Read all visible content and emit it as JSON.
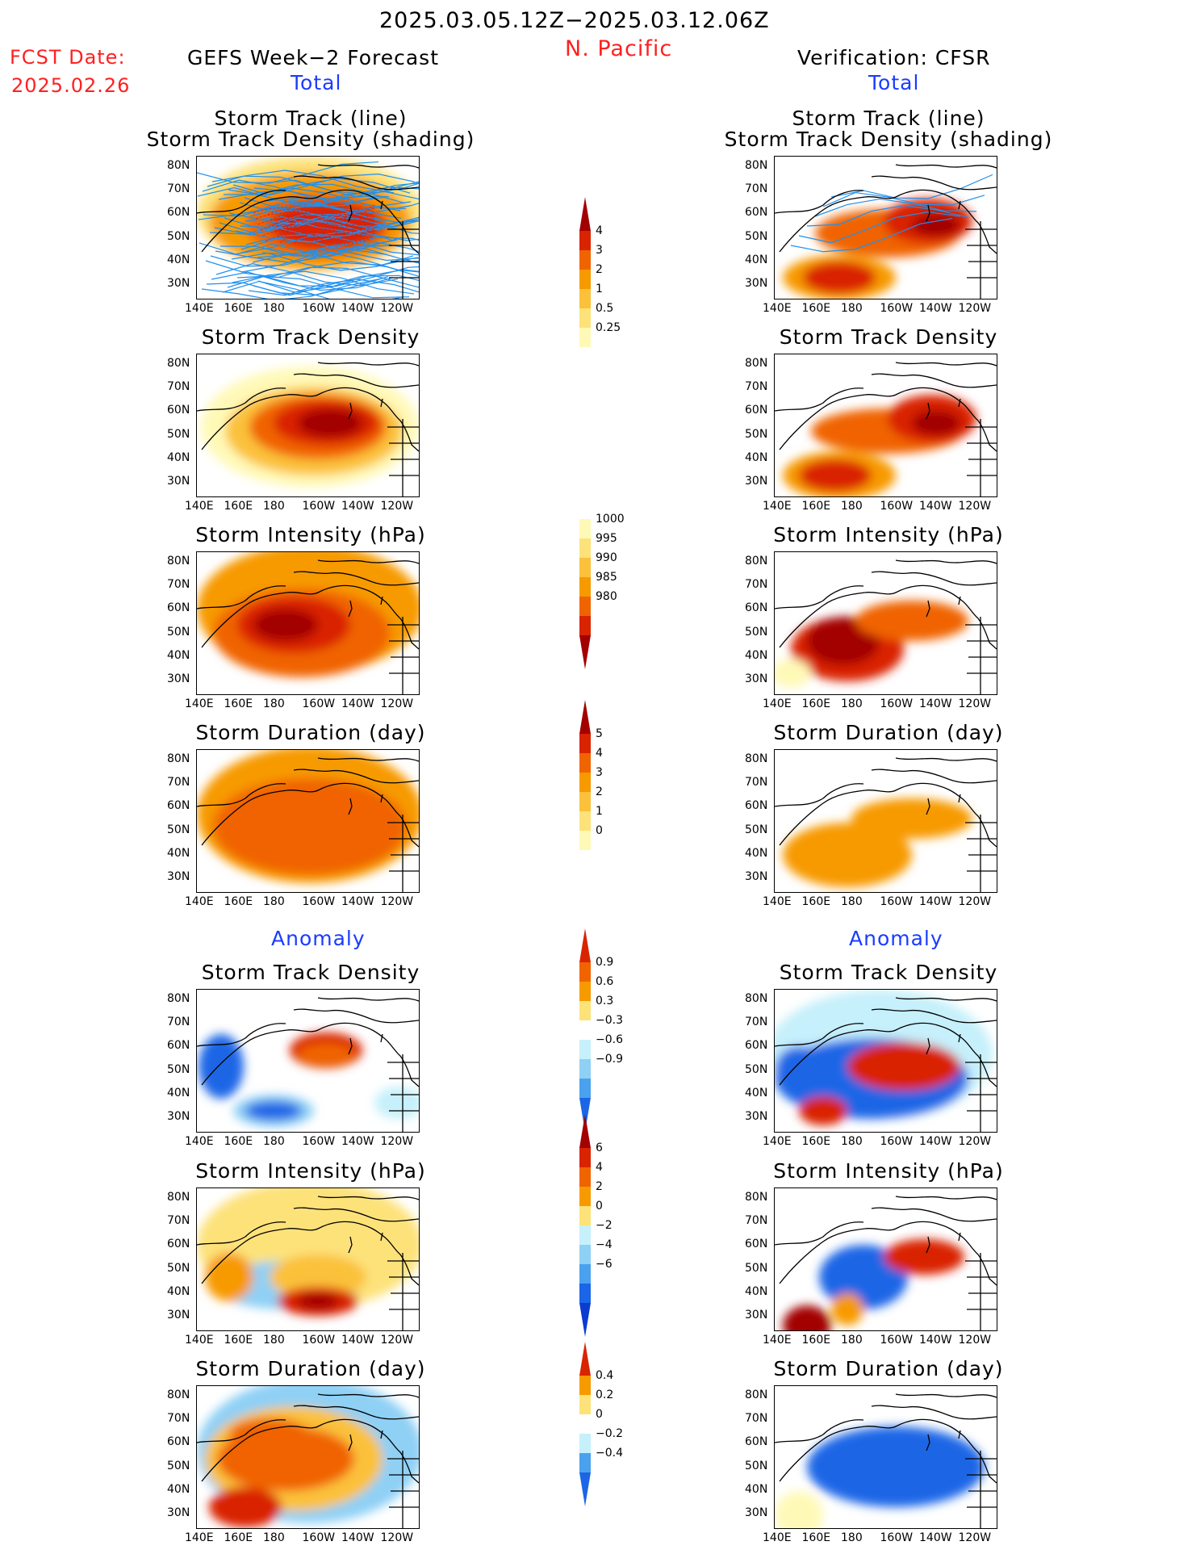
{
  "header": {
    "date_range": "2025.03.05.12Z−2025.03.12.06Z",
    "region": "N. Pacific",
    "fcst_label": "FCST Date:",
    "fcst_date": "2025.02.26",
    "left_title": "GEFS Week−2 Forecast",
    "right_title": "Verification: CFSR",
    "total_label": "Total",
    "anomaly_label": "Anomaly"
  },
  "axes": {
    "lat_ticks": [
      "80N",
      "70N",
      "60N",
      "50N",
      "40N",
      "30N"
    ],
    "lon_ticks": [
      "140E",
      "160E",
      "180",
      "160W",
      "140W",
      "120W"
    ]
  },
  "panel_titles": {
    "track_line": "Storm Track (line)",
    "track_shading": "Storm Track Density (shading)",
    "density": "Storm Track Density",
    "intensity": "Storm Intensity (hPa)",
    "duration": "Storm Duration (day)"
  },
  "colors": {
    "c1": "#fff9b8",
    "c2": "#fde27a",
    "c3": "#fbc13b",
    "c4": "#f79a00",
    "c5": "#f06400",
    "c6": "#d92400",
    "c7": "#a30000",
    "b1": "#c6f0fb",
    "b2": "#8fd0f5",
    "b3": "#4aa2ef",
    "b4": "#1a66e6",
    "b5": "#0a3ccf",
    "track_line": "#2090ee",
    "track_red": "#e0201a"
  },
  "chart_data": [
    {
      "type": "heatmap",
      "name": "density_total",
      "colorbar_labels": [
        "4",
        "3",
        "2",
        "1",
        "0.5",
        "0.25"
      ]
    },
    {
      "type": "heatmap",
      "name": "intensity_total",
      "colorbar_labels": [
        "1000",
        "995",
        "990",
        "985",
        "980"
      ]
    },
    {
      "type": "heatmap",
      "name": "duration_total",
      "colorbar_labels": [
        "5",
        "4",
        "3",
        "2",
        "1",
        "0"
      ]
    },
    {
      "type": "heatmap",
      "name": "density_anomaly",
      "colorbar_labels": [
        "0.9",
        "0.6",
        "0.3",
        "−0.3",
        "−0.6",
        "−0.9"
      ]
    },
    {
      "type": "heatmap",
      "name": "intensity_anomaly",
      "colorbar_labels": [
        "6",
        "4",
        "2",
        "0",
        "−2",
        "−4",
        "−6"
      ]
    },
    {
      "type": "heatmap",
      "name": "duration_anomaly",
      "colorbar_labels": [
        "0.4",
        "0.2",
        "0",
        "−0.2",
        "−0.4"
      ]
    }
  ]
}
